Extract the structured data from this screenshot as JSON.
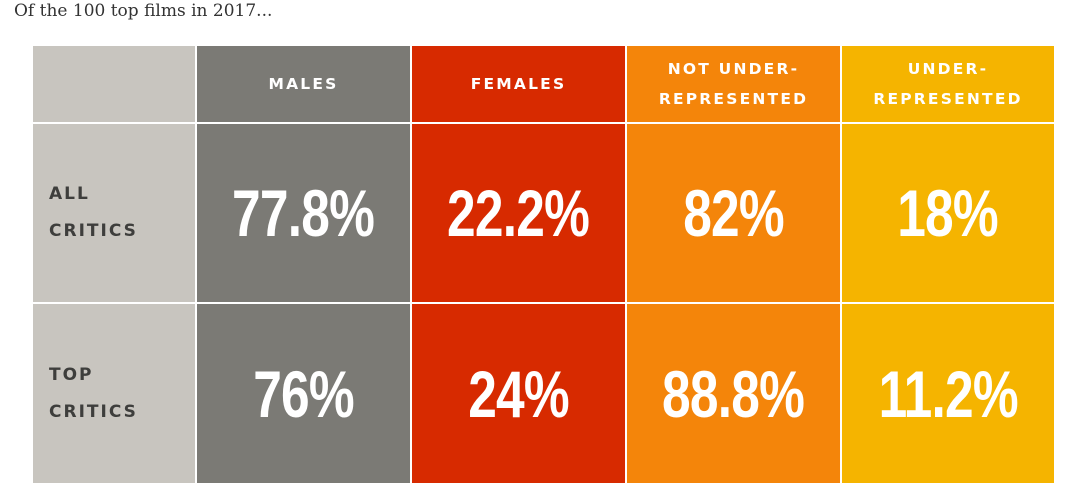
{
  "subtitle": "Of the 100 top films in 2017...",
  "colors": {
    "stub": "#c8c5bf",
    "males": "#7b7a75",
    "females": "#d72a00",
    "not_underrepresented": "#f4850a",
    "underrepresented": "#f5b400",
    "row_label_text": "#3e3e3c"
  },
  "chart_data": {
    "type": "table",
    "title": "",
    "columns": [
      {
        "line1": "MALES",
        "line2": ""
      },
      {
        "line1": "FEMALES",
        "line2": ""
      },
      {
        "line1": "NOT UNDER-",
        "line2": "REPRESENTED"
      },
      {
        "line1": "UNDER-",
        "line2": "REPRESENTED"
      }
    ],
    "rows": [
      {
        "label_line1": "ALL",
        "label_line2": "CRITICS",
        "values": [
          "77.8%",
          "22.2%",
          "82%",
          "18%"
        ]
      },
      {
        "label_line1": "TOP",
        "label_line2": "CRITICS",
        "values": [
          "76%",
          "24%",
          "88.8%",
          "11.2%"
        ]
      }
    ]
  }
}
